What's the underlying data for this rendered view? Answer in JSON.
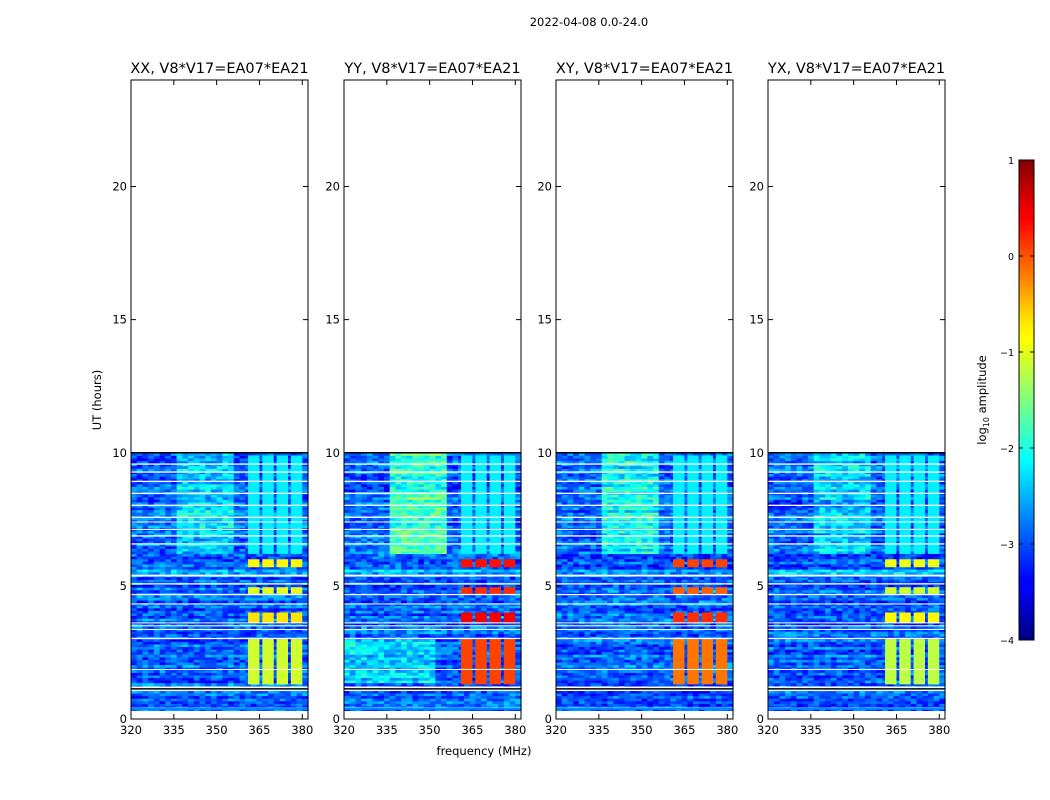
{
  "figure": {
    "suptitle": "2022-04-08 0.0-24.0"
  },
  "chart_data": {
    "type": "heatmap",
    "title": "2022-04-08 0.0-24.0",
    "xlabel": "frequency (MHz)",
    "ylabel": "UT (hours)",
    "xlim": [
      320,
      382
    ],
    "ylim": [
      0,
      24
    ],
    "xticks": [
      320,
      335,
      350,
      365,
      380
    ],
    "yticks": [
      0,
      5,
      10,
      15,
      20
    ],
    "data_time_range": [
      0.3,
      10.0
    ],
    "panels": [
      {
        "title": "XX, V8*V17=EA07*EA21",
        "rfi_level": -1.1
      },
      {
        "title": "YY, V8*V17=EA07*EA21",
        "rfi_level": 0.05
      },
      {
        "title": "XY, V8*V17=EA07*EA21",
        "rfi_level": -0.2
      },
      {
        "title": "YX, V8*V17=EA07*EA21",
        "rfi_level": -1.2
      }
    ],
    "rfi_channels_mhz": [
      [
        361,
        365
      ],
      [
        366,
        370
      ],
      [
        371,
        375
      ],
      [
        376,
        380
      ]
    ],
    "gaps_hours": [
      [
        0.4,
        0.43
      ],
      [
        1.05,
        1.22
      ],
      [
        1.85,
        1.88
      ],
      [
        3.0,
        3.05
      ],
      [
        3.35,
        3.38
      ],
      [
        3.48,
        3.52
      ],
      [
        3.6,
        3.63
      ],
      [
        4.3,
        4.34
      ],
      [
        4.65,
        4.7
      ],
      [
        5.05,
        5.1
      ],
      [
        5.35,
        5.42
      ],
      [
        6.55,
        6.6
      ],
      [
        6.85,
        6.9
      ],
      [
        7.1,
        7.14
      ],
      [
        7.38,
        7.42
      ],
      [
        7.55,
        7.6
      ],
      [
        8.0,
        8.05
      ],
      [
        8.45,
        8.5
      ],
      [
        8.9,
        8.95
      ],
      [
        9.25,
        9.3
      ],
      [
        9.55,
        9.6
      ]
    ],
    "colorbar": {
      "label": "log10 amplitude",
      "label_text": "log",
      "label_sub": "10",
      "label_suffix": " amplitude",
      "range": [
        -4,
        1
      ],
      "ticks": [
        "1",
        "0",
        "−1",
        "−2",
        "−3",
        "−4"
      ],
      "tick_values": [
        1,
        0,
        -1,
        -2,
        -3,
        -4
      ],
      "colormap": "jet"
    }
  }
}
